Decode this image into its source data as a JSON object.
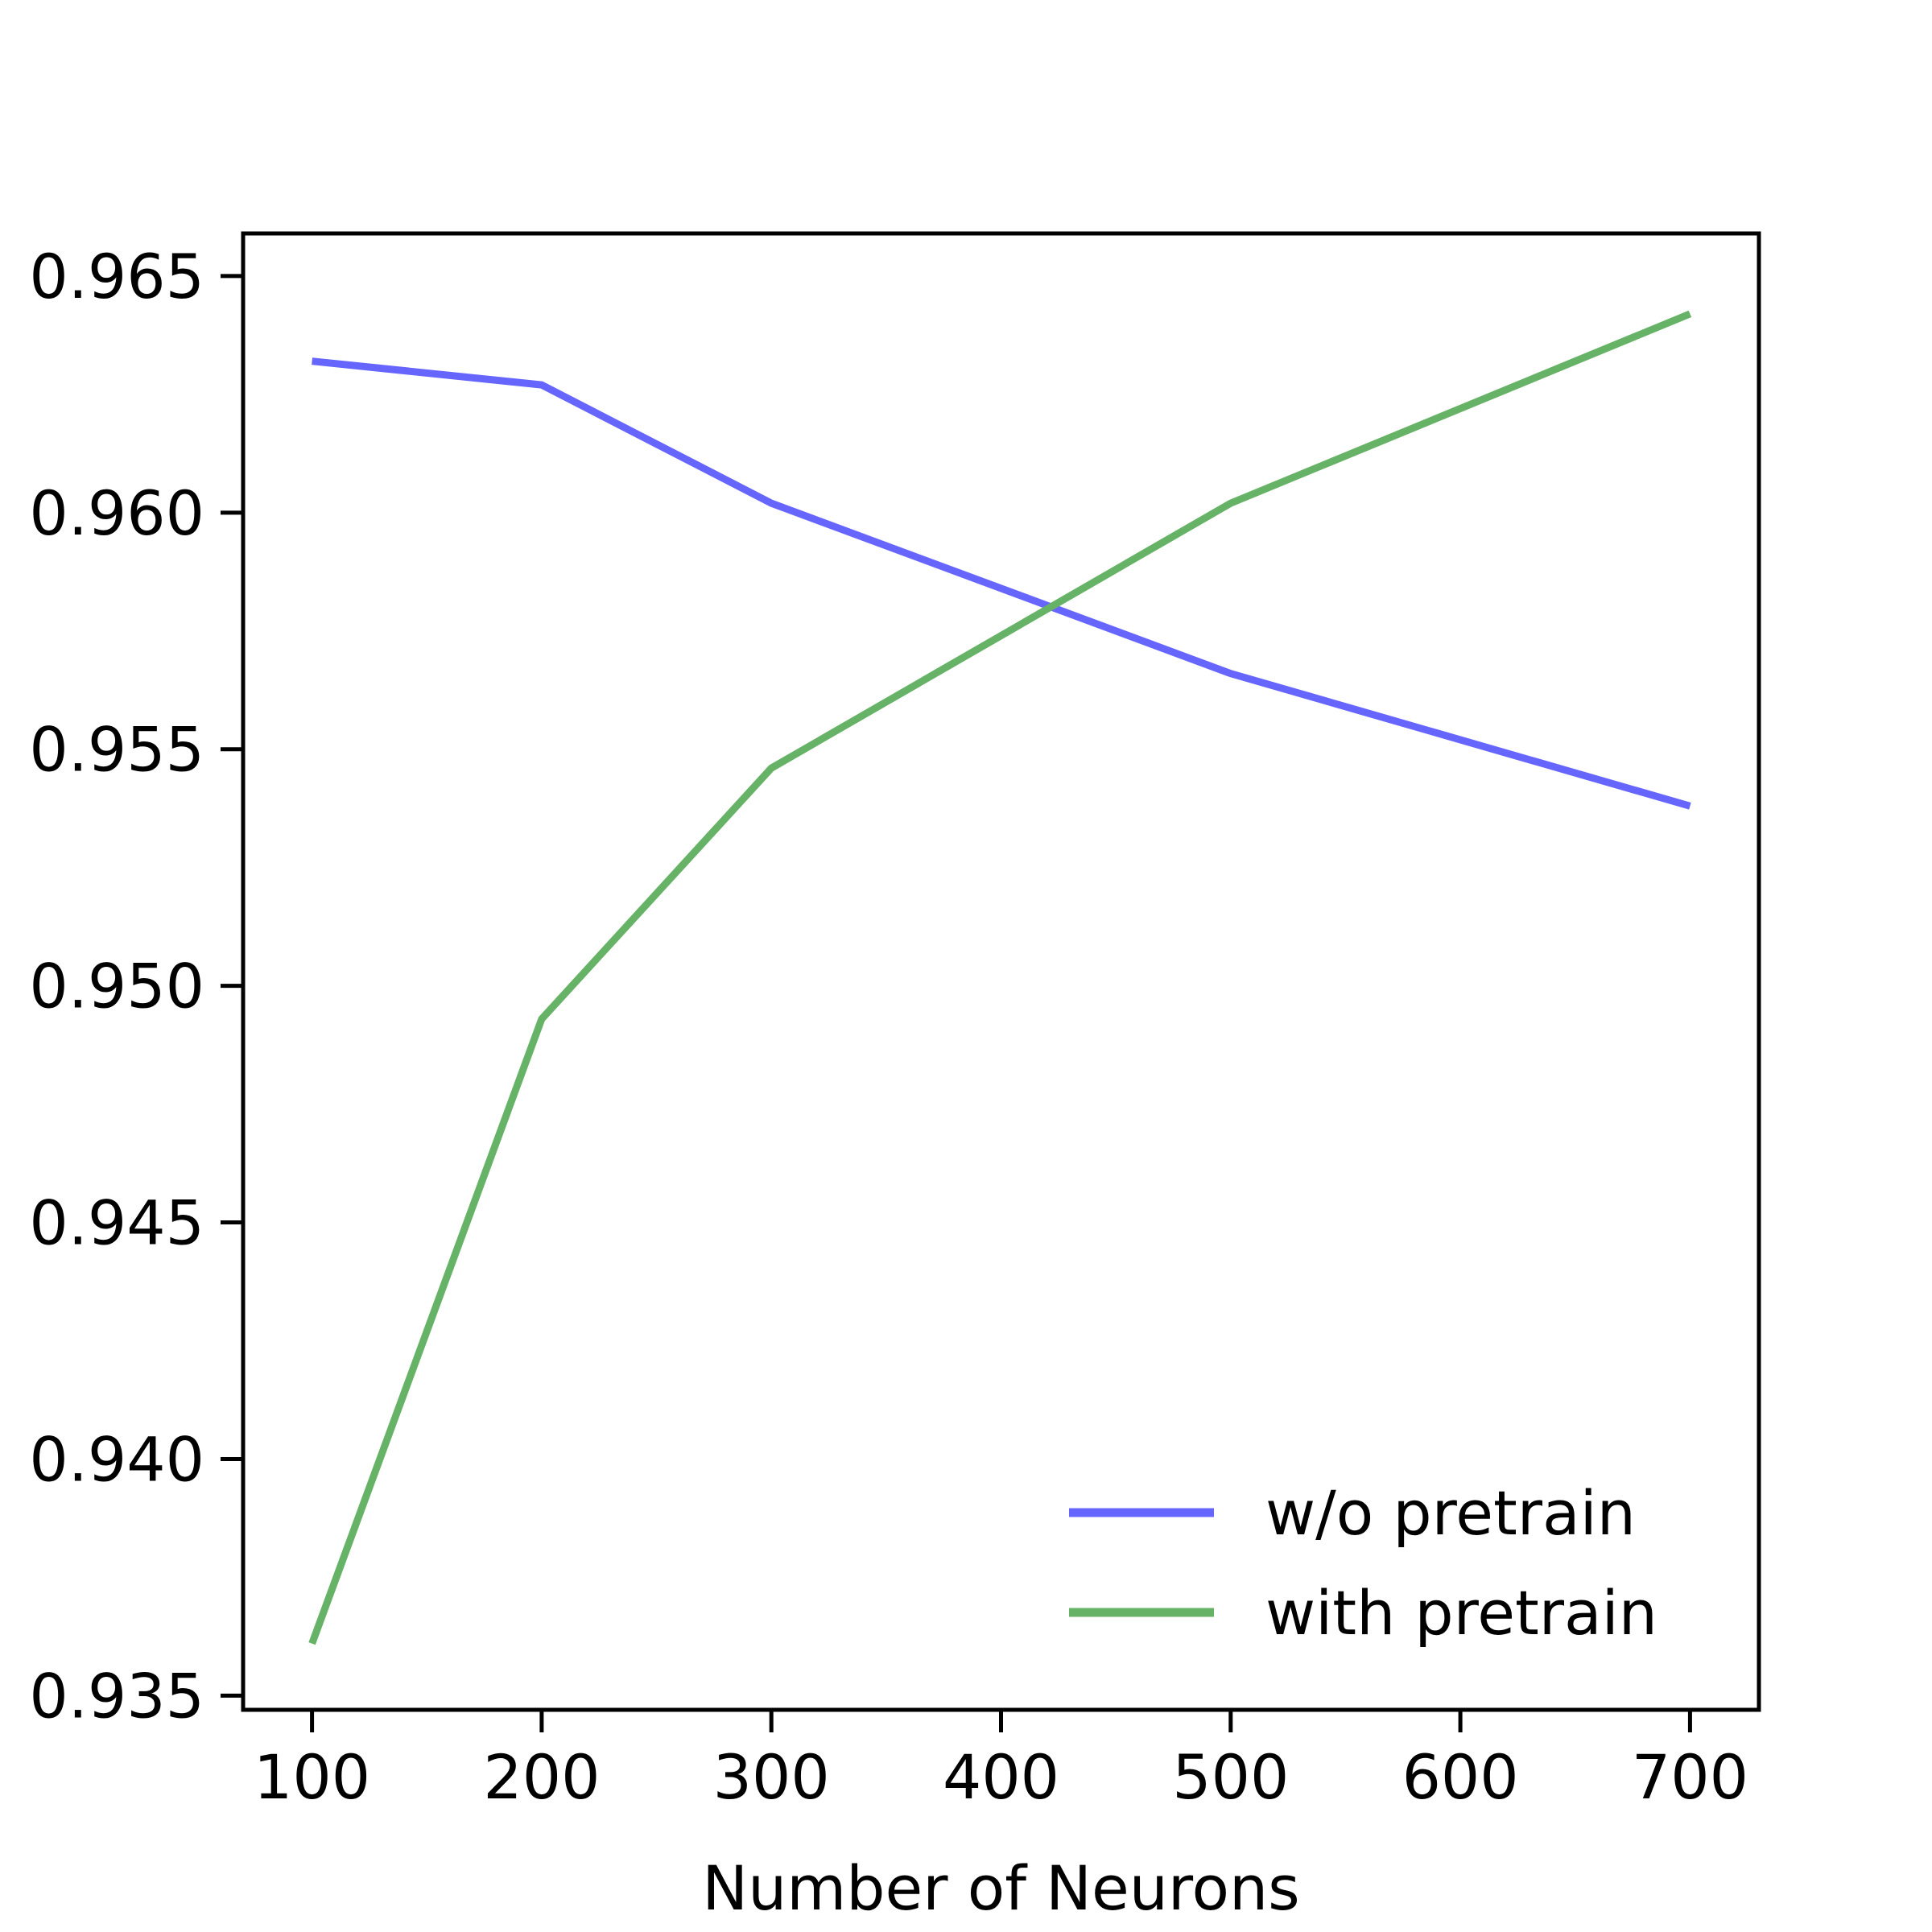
{
  "chart_data": {
    "type": "line",
    "title": "",
    "xlabel": "Number of Neurons",
    "ylabel": "",
    "x": [
      100,
      200,
      300,
      500,
      700
    ],
    "series": [
      {
        "name": "w/o pretrain",
        "color": "#6666ff",
        "values": [
          0.9632,
          0.9627,
          0.9602,
          0.9566,
          0.9538
        ]
      },
      {
        "name": "with pretrain",
        "color": "#66b266",
        "values": [
          0.9361,
          0.9493,
          0.9546,
          0.9602,
          0.9642
        ]
      }
    ],
    "xlim": [
      70,
      730
    ],
    "ylim": [
      0.9347,
      0.9659
    ],
    "xticks": [
      100,
      200,
      300,
      400,
      500,
      600,
      700
    ],
    "xtick_labels": [
      "100",
      "200",
      "300",
      "400",
      "500",
      "600",
      "700"
    ],
    "yticks": [
      0.935,
      0.94,
      0.945,
      0.95,
      0.955,
      0.96,
      0.965
    ],
    "ytick_labels": [
      "0.935",
      "0.940",
      "0.945",
      "0.950",
      "0.955",
      "0.960",
      "0.965"
    ],
    "grid": false,
    "legend_position": "lower-right"
  }
}
